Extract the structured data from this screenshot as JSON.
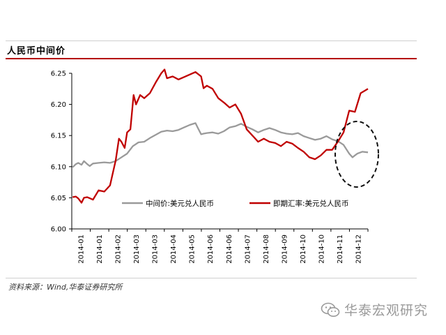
{
  "header": {
    "title": "人民币中间价"
  },
  "footer": {
    "source": "资料来源：Wind,华泰证券研究所"
  },
  "watermark": {
    "text": "华泰宏观研究",
    "icon": "wechat-icon"
  },
  "colors": {
    "series_mid": "#9a9a9a",
    "series_spot": "#c00000",
    "accent_rule": "#b40000"
  },
  "chart_data": {
    "type": "line",
    "title": "人民币中间价",
    "xlabel": "",
    "ylabel": "",
    "ylim": [
      6.0,
      6.25
    ],
    "y_ticks": [
      "6.00",
      "6.05",
      "6.10",
      "6.15",
      "6.20",
      "6.25"
    ],
    "x_tick_labels": [
      "2014-01",
      "2014-01",
      "2014-02",
      "2014-03",
      "2014-03",
      "2014-04",
      "2014-05",
      "2014-06",
      "2014-06",
      "2014-07",
      "2014-08",
      "2014-09",
      "2014-10",
      "2014-10",
      "2014-11",
      "2014-12"
    ],
    "x_range": [
      "2014-01-01",
      "2014-12-31"
    ],
    "grid": false,
    "legend_position": "middle-center",
    "annotation": "dashed ellipse highlighting Nov–Dec 2014",
    "series": [
      {
        "name": "中间价:美元兑人民币",
        "color": "#9a9a9a",
        "points": [
          [
            "2014-01-02",
            6.099
          ],
          [
            "2014-01-06",
            6.104
          ],
          [
            "2014-01-09",
            6.106
          ],
          [
            "2014-01-13",
            6.103
          ],
          [
            "2014-01-16",
            6.109
          ],
          [
            "2014-01-20",
            6.104
          ],
          [
            "2014-01-23",
            6.101
          ],
          [
            "2014-01-27",
            6.105
          ],
          [
            "2014-02-03",
            6.106
          ],
          [
            "2014-02-10",
            6.107
          ],
          [
            "2014-02-17",
            6.106
          ],
          [
            "2014-02-24",
            6.109
          ],
          [
            "2014-03-03",
            6.115
          ],
          [
            "2014-03-10",
            6.121
          ],
          [
            "2014-03-17",
            6.133
          ],
          [
            "2014-03-24",
            6.139
          ],
          [
            "2014-03-31",
            6.14
          ],
          [
            "2014-04-07",
            6.146
          ],
          [
            "2014-04-14",
            6.151
          ],
          [
            "2014-04-21",
            6.156
          ],
          [
            "2014-04-28",
            6.158
          ],
          [
            "2014-05-05",
            6.157
          ],
          [
            "2014-05-12",
            6.159
          ],
          [
            "2014-05-19",
            6.163
          ],
          [
            "2014-05-26",
            6.167
          ],
          [
            "2014-06-02",
            6.17
          ],
          [
            "2014-06-05",
            6.162
          ],
          [
            "2014-06-09",
            6.152
          ],
          [
            "2014-06-12",
            6.153
          ],
          [
            "2014-06-16",
            6.154
          ],
          [
            "2014-06-23",
            6.155
          ],
          [
            "2014-06-30",
            6.153
          ],
          [
            "2014-07-07",
            6.157
          ],
          [
            "2014-07-14",
            6.163
          ],
          [
            "2014-07-21",
            6.165
          ],
          [
            "2014-07-28",
            6.169
          ],
          [
            "2014-08-04",
            6.164
          ],
          [
            "2014-08-11",
            6.16
          ],
          [
            "2014-08-18",
            6.155
          ],
          [
            "2014-08-25",
            6.159
          ],
          [
            "2014-09-01",
            6.162
          ],
          [
            "2014-09-08",
            6.159
          ],
          [
            "2014-09-15",
            6.155
          ],
          [
            "2014-09-22",
            6.153
          ],
          [
            "2014-09-29",
            6.152
          ],
          [
            "2014-10-06",
            6.154
          ],
          [
            "2014-10-13",
            6.149
          ],
          [
            "2014-10-20",
            6.146
          ],
          [
            "2014-10-27",
            6.143
          ],
          [
            "2014-11-03",
            6.145
          ],
          [
            "2014-11-10",
            6.149
          ],
          [
            "2014-11-17",
            6.144
          ],
          [
            "2014-11-24",
            6.141
          ],
          [
            "2014-12-01",
            6.135
          ],
          [
            "2014-12-08",
            6.121
          ],
          [
            "2014-12-12",
            6.115
          ],
          [
            "2014-12-18",
            6.121
          ],
          [
            "2014-12-24",
            6.124
          ],
          [
            "2014-12-31",
            6.123
          ]
        ]
      },
      {
        "name": "即期汇率:美元兑人民币",
        "color": "#c00000",
        "points": [
          [
            "2014-01-02",
            6.051
          ],
          [
            "2014-01-06",
            6.052
          ],
          [
            "2014-01-09",
            6.049
          ],
          [
            "2014-01-13",
            6.042
          ],
          [
            "2014-01-16",
            6.05
          ],
          [
            "2014-01-20",
            6.051
          ],
          [
            "2014-01-27",
            6.047
          ],
          [
            "2014-02-03",
            6.062
          ],
          [
            "2014-02-10",
            6.06
          ],
          [
            "2014-02-17",
            6.07
          ],
          [
            "2014-02-24",
            6.11
          ],
          [
            "2014-02-28",
            6.145
          ],
          [
            "2014-03-03",
            6.14
          ],
          [
            "2014-03-07",
            6.13
          ],
          [
            "2014-03-10",
            6.155
          ],
          [
            "2014-03-14",
            6.16
          ],
          [
            "2014-03-18",
            6.215
          ],
          [
            "2014-03-21",
            6.2
          ],
          [
            "2014-03-26",
            6.215
          ],
          [
            "2014-03-31",
            6.21
          ],
          [
            "2014-04-07",
            6.218
          ],
          [
            "2014-04-14",
            6.235
          ],
          [
            "2014-04-21",
            6.25
          ],
          [
            "2014-04-25",
            6.256
          ],
          [
            "2014-04-28",
            6.242
          ],
          [
            "2014-05-05",
            6.245
          ],
          [
            "2014-05-12",
            6.24
          ],
          [
            "2014-05-19",
            6.244
          ],
          [
            "2014-05-26",
            6.248
          ],
          [
            "2014-06-02",
            6.252
          ],
          [
            "2014-06-09",
            6.245
          ],
          [
            "2014-06-12",
            6.226
          ],
          [
            "2014-06-16",
            6.23
          ],
          [
            "2014-06-23",
            6.225
          ],
          [
            "2014-06-30",
            6.21
          ],
          [
            "2014-07-07",
            6.203
          ],
          [
            "2014-07-14",
            6.195
          ],
          [
            "2014-07-21",
            6.2
          ],
          [
            "2014-07-28",
            6.185
          ],
          [
            "2014-08-04",
            6.16
          ],
          [
            "2014-08-11",
            6.15
          ],
          [
            "2014-08-18",
            6.14
          ],
          [
            "2014-08-25",
            6.145
          ],
          [
            "2014-09-01",
            6.14
          ],
          [
            "2014-09-08",
            6.138
          ],
          [
            "2014-09-15",
            6.133
          ],
          [
            "2014-09-22",
            6.14
          ],
          [
            "2014-09-29",
            6.137
          ],
          [
            "2014-10-06",
            6.13
          ],
          [
            "2014-10-13",
            6.124
          ],
          [
            "2014-10-20",
            6.115
          ],
          [
            "2014-10-27",
            6.112
          ],
          [
            "2014-11-03",
            6.118
          ],
          [
            "2014-11-10",
            6.127
          ],
          [
            "2014-11-17",
            6.127
          ],
          [
            "2014-11-24",
            6.14
          ],
          [
            "2014-12-01",
            6.155
          ],
          [
            "2014-12-08",
            6.19
          ],
          [
            "2014-12-15",
            6.188
          ],
          [
            "2014-12-22",
            6.218
          ],
          [
            "2014-12-31",
            6.225
          ]
        ]
      }
    ]
  }
}
